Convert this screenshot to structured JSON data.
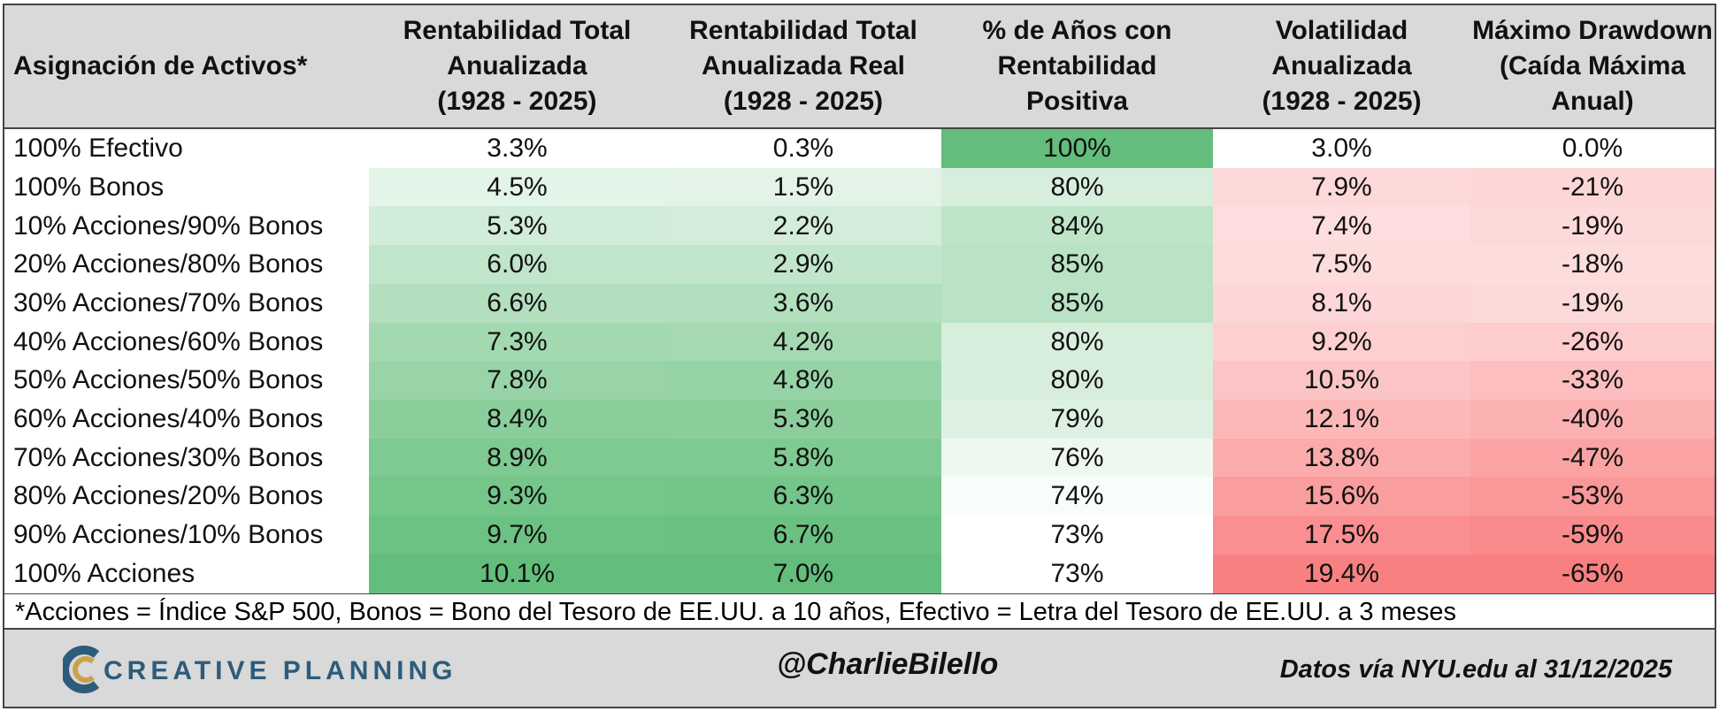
{
  "header": {
    "columns": [
      "Asignación de Activos*",
      "Rentabilidad Total\nAnualizada\n(1928 - 2025)",
      "Rentabilidad Total\nAnualizada Real\n(1928 - 2025)",
      "% de Años con\nRentabilidad\nPositiva",
      "Volatilidad\nAnualizada\n(1928 - 2025)",
      "Máximo Drawdown\n(Caída Máxima\nAnual)"
    ]
  },
  "table": {
    "rows": [
      [
        "100% Efectivo",
        "3.3%",
        "0.3%",
        "100%",
        "3.0%",
        "0.0%"
      ],
      [
        "100% Bonos",
        "4.5%",
        "1.5%",
        "80%",
        "7.9%",
        "-21%"
      ],
      [
        "10% Acciones/90% Bonos",
        "5.3%",
        "2.2%",
        "84%",
        "7.4%",
        "-19%"
      ],
      [
        "20% Acciones/80% Bonos",
        "6.0%",
        "2.9%",
        "85%",
        "7.5%",
        "-18%"
      ],
      [
        "30% Acciones/70% Bonos",
        "6.6%",
        "3.6%",
        "85%",
        "8.1%",
        "-19%"
      ],
      [
        "40% Acciones/60% Bonos",
        "7.3%",
        "4.2%",
        "80%",
        "9.2%",
        "-26%"
      ],
      [
        "50% Acciones/50% Bonos",
        "7.8%",
        "4.8%",
        "80%",
        "10.5%",
        "-33%"
      ],
      [
        "60% Acciones/40% Bonos",
        "8.4%",
        "5.3%",
        "79%",
        "12.1%",
        "-40%"
      ],
      [
        "70% Acciones/30% Bonos",
        "8.9%",
        "5.8%",
        "76%",
        "13.8%",
        "-47%"
      ],
      [
        "80% Acciones/20% Bonos",
        "9.3%",
        "6.3%",
        "74%",
        "15.6%",
        "-53%"
      ],
      [
        "90% Acciones/10% Bonos",
        "9.7%",
        "6.7%",
        "73%",
        "17.5%",
        "-59%"
      ],
      [
        "100% Acciones",
        "10.1%",
        "7.0%",
        "73%",
        "19.4%",
        "-65%"
      ]
    ]
  },
  "footnote": "*Acciones = Índice S&P 500, Bonos = Bono del Tesoro de EE.UU. a 10 años, Efectivo = Letra del Tesoro de EE.UU. a 3 meses",
  "footer": {
    "brand": "CREATIVE PLANNING",
    "handle": "@CharlieBilello",
    "source": "Datos vía NYU.edu al 31/12/2025"
  }
}
